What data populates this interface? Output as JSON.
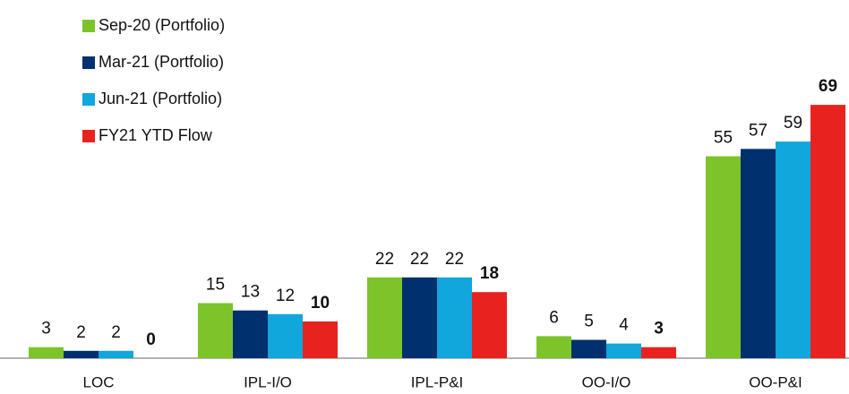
{
  "chart_data": {
    "type": "bar",
    "categories": [
      "LOC",
      "IPL-I/O",
      "IPL-P&I",
      "OO-I/O",
      "OO-P&I"
    ],
    "series": [
      {
        "name": "Sep-20 (Portfolio)",
        "color": "#7cc42a",
        "values": [
          3,
          15,
          22,
          6,
          55
        ]
      },
      {
        "name": "Mar-21 (Portfolio)",
        "color": "#00306e",
        "values": [
          2,
          13,
          22,
          5,
          57
        ]
      },
      {
        "name": "Jun-21 (Portfolio)",
        "color": "#11a6dc",
        "values": [
          2,
          12,
          22,
          4,
          59
        ]
      },
      {
        "name": "FY21 YTD Flow",
        "color": "#e8221e",
        "values": [
          0,
          10,
          18,
          3,
          69
        ]
      }
    ]
  }
}
